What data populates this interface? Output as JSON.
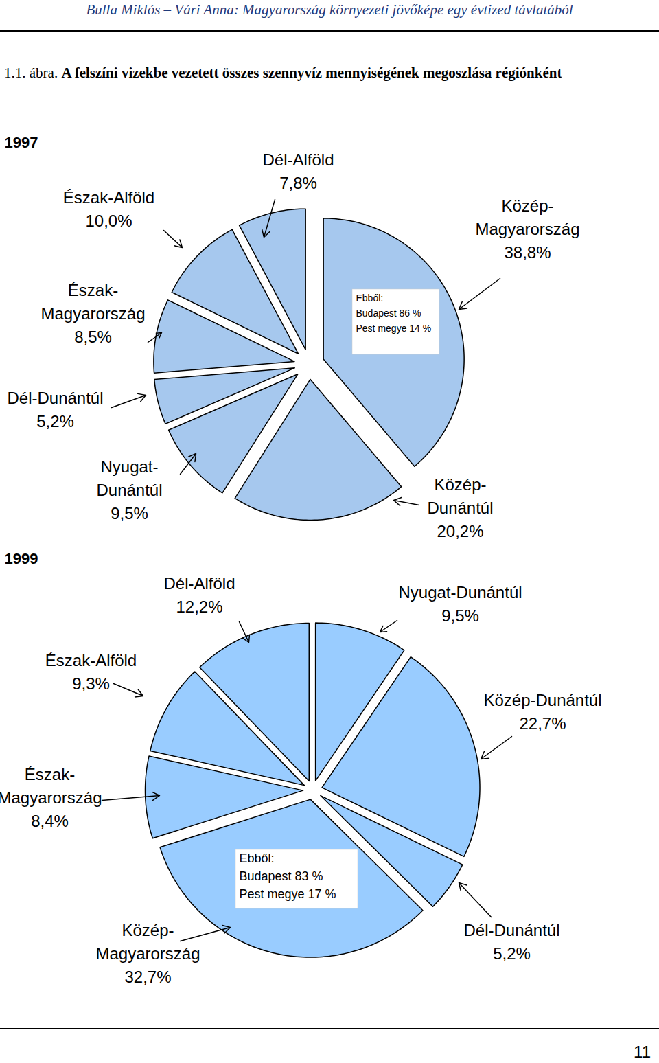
{
  "header": "Bulla Miklós – Vári Anna: Magyarország környezeti jövőképe egy évtized távlatából",
  "caption": {
    "label": "1.1. ábra.",
    "text": "A felszíni vizekbe vezetett összes szennyvíz mennyiségének megoszlása régiónként"
  },
  "page_number": 11,
  "chart_data": [
    {
      "type": "pie",
      "title": "1997",
      "categories": [
        "Közép-Magyarország",
        "Közép-Dunántúl",
        "Nyugat-Dunántúl",
        "Dél-Dunántúl",
        "Észak-Magyarország",
        "Észak-Alföld",
        "Dél-Alföld"
      ],
      "values": [
        38.8,
        20.2,
        9.5,
        5.2,
        8.5,
        10.0,
        7.8
      ],
      "value_labels": [
        "38,8%",
        "20,2%",
        "9,5%",
        "5,2%",
        "8,5%",
        "10,0%",
        "7,8%"
      ],
      "data_labels": true,
      "color": "#a6c8ee",
      "breakdown": {
        "category": "Közép-Magyarország",
        "title": "Ebből:",
        "items": [
          {
            "name": "Budapest",
            "value": 86,
            "value_label": "86 %"
          },
          {
            "name": "Pest megye",
            "value": 14,
            "value_label": "14 %"
          }
        ]
      }
    },
    {
      "type": "pie",
      "title": "1999",
      "categories": [
        "Nyugat-Dunántúl",
        "Közép-Dunántúl",
        "Dél-Dunántúl",
        "Közép-Magyarország",
        "Észak-Magyarország",
        "Észak-Alföld",
        "Dél-Alföld"
      ],
      "values": [
        9.5,
        22.7,
        5.2,
        32.7,
        8.4,
        9.3,
        12.2
      ],
      "value_labels": [
        "9,5%",
        "22,7%",
        "5,2%",
        "32,7%",
        "8,4%",
        "9,3%",
        "12,2%"
      ],
      "data_labels": true,
      "color": "#99ccff",
      "breakdown": {
        "category": "Közép-Magyarország",
        "title": "Ebből:",
        "items": [
          {
            "name": "Budapest",
            "value": 83,
            "value_label": "83 %"
          },
          {
            "name": "Pest megye",
            "value": 17,
            "value_label": "17 %"
          }
        ]
      }
    }
  ]
}
